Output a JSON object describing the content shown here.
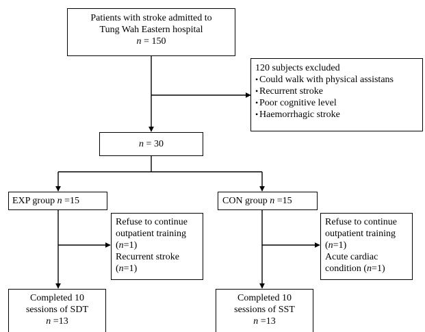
{
  "admitted": {
    "line1": "Patients with stroke admitted to",
    "line2": "Tung Wah Eastern hospital",
    "n_sym": "n",
    "n_rest": " = 150"
  },
  "excluded": {
    "title": "120 subjects excluded",
    "items": [
      "Could walk with physical assistans",
      "Recurrent stroke",
      "Poor cognitive level",
      "Haemorrhagic stroke"
    ]
  },
  "enrolled": {
    "n_sym": "n",
    "n_rest": " = 30"
  },
  "exp": {
    "group_label": "EXP group ",
    "n_sym": "n",
    "n_rest": " =15",
    "dropout": {
      "line1": "Refuse to continue",
      "line2": "outpatient training",
      "line3_sym": "n",
      "line3_rest": "=1)",
      "line4": "Recurrent stroke",
      "line5_sym": "n",
      "line5_rest": "=1)"
    },
    "completed": {
      "line1": "Completed 10",
      "line2": "sessions of SDT",
      "n_sym": "n",
      "n_rest": " =13"
    }
  },
  "con": {
    "group_label": "CON group ",
    "n_sym": "n",
    "n_rest": " =15",
    "dropout": {
      "line1": "Refuse to continue",
      "line2": "outpatient training",
      "line3_sym": "n",
      "line3_rest": "=1)",
      "line4": "Acute cardiac",
      "line5_pre": "condition  (",
      "line5_sym": "n",
      "line5_rest": "=1)"
    },
    "completed": {
      "line1": "Completed 10",
      "line2": "sessions of SST",
      "n_sym": "n",
      "n_rest": " =13"
    }
  }
}
